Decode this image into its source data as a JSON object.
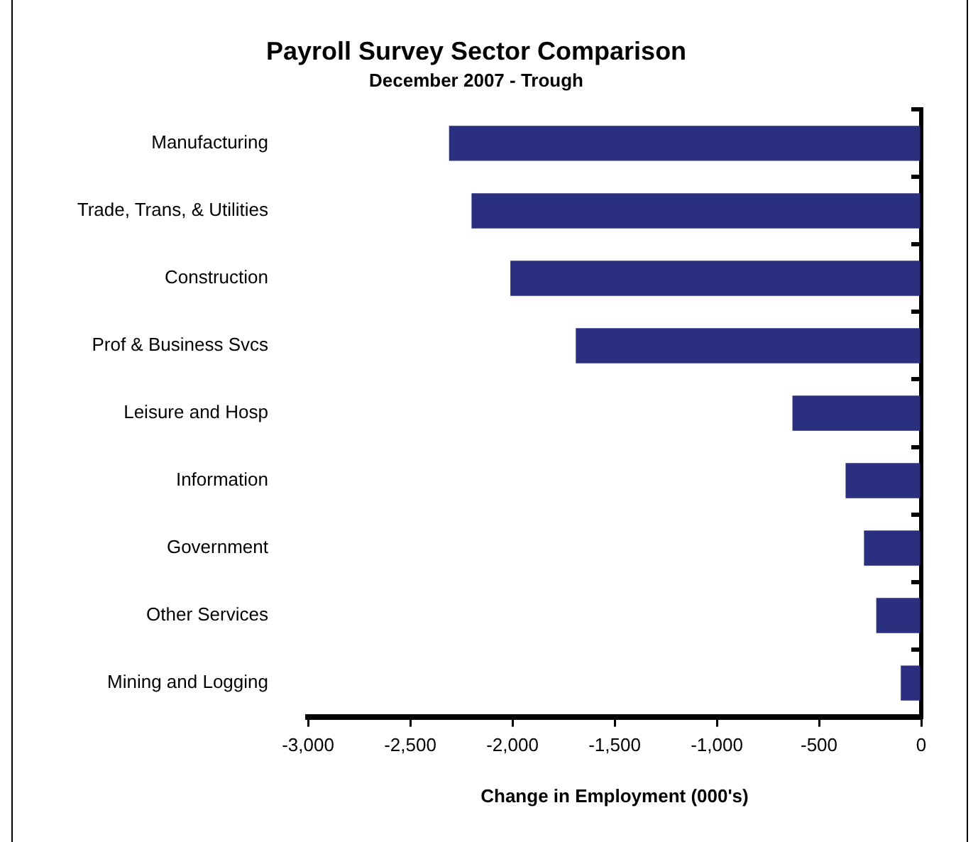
{
  "chart_data": {
    "type": "bar",
    "orientation": "horizontal",
    "title": "Payroll Survey Sector Comparison",
    "subtitle": "December 2007 - Trough",
    "xlabel": "Change in Employment (000's)",
    "categories": [
      "Manufacturing",
      "Trade, Trans, & Utilities",
      "Construction",
      "Prof & Business Svcs",
      "Leisure and Hosp",
      "Information",
      "Government",
      "Other Services",
      "Mining and Logging"
    ],
    "values": [
      -2310,
      -2200,
      -2010,
      -1690,
      -630,
      -370,
      -280,
      -220,
      -100
    ],
    "color": "#2b2f80",
    "xlim": [
      -3000,
      0
    ],
    "xticks": [
      {
        "value": -3000,
        "label": "-3,000"
      },
      {
        "value": -2500,
        "label": "-2,500"
      },
      {
        "value": -2000,
        "label": "-2,000"
      },
      {
        "value": -1500,
        "label": "-1,500"
      },
      {
        "value": -1000,
        "label": "-1,000"
      },
      {
        "value": -500,
        "label": "-500"
      },
      0
    ],
    "grid": false,
    "legend": false
  }
}
